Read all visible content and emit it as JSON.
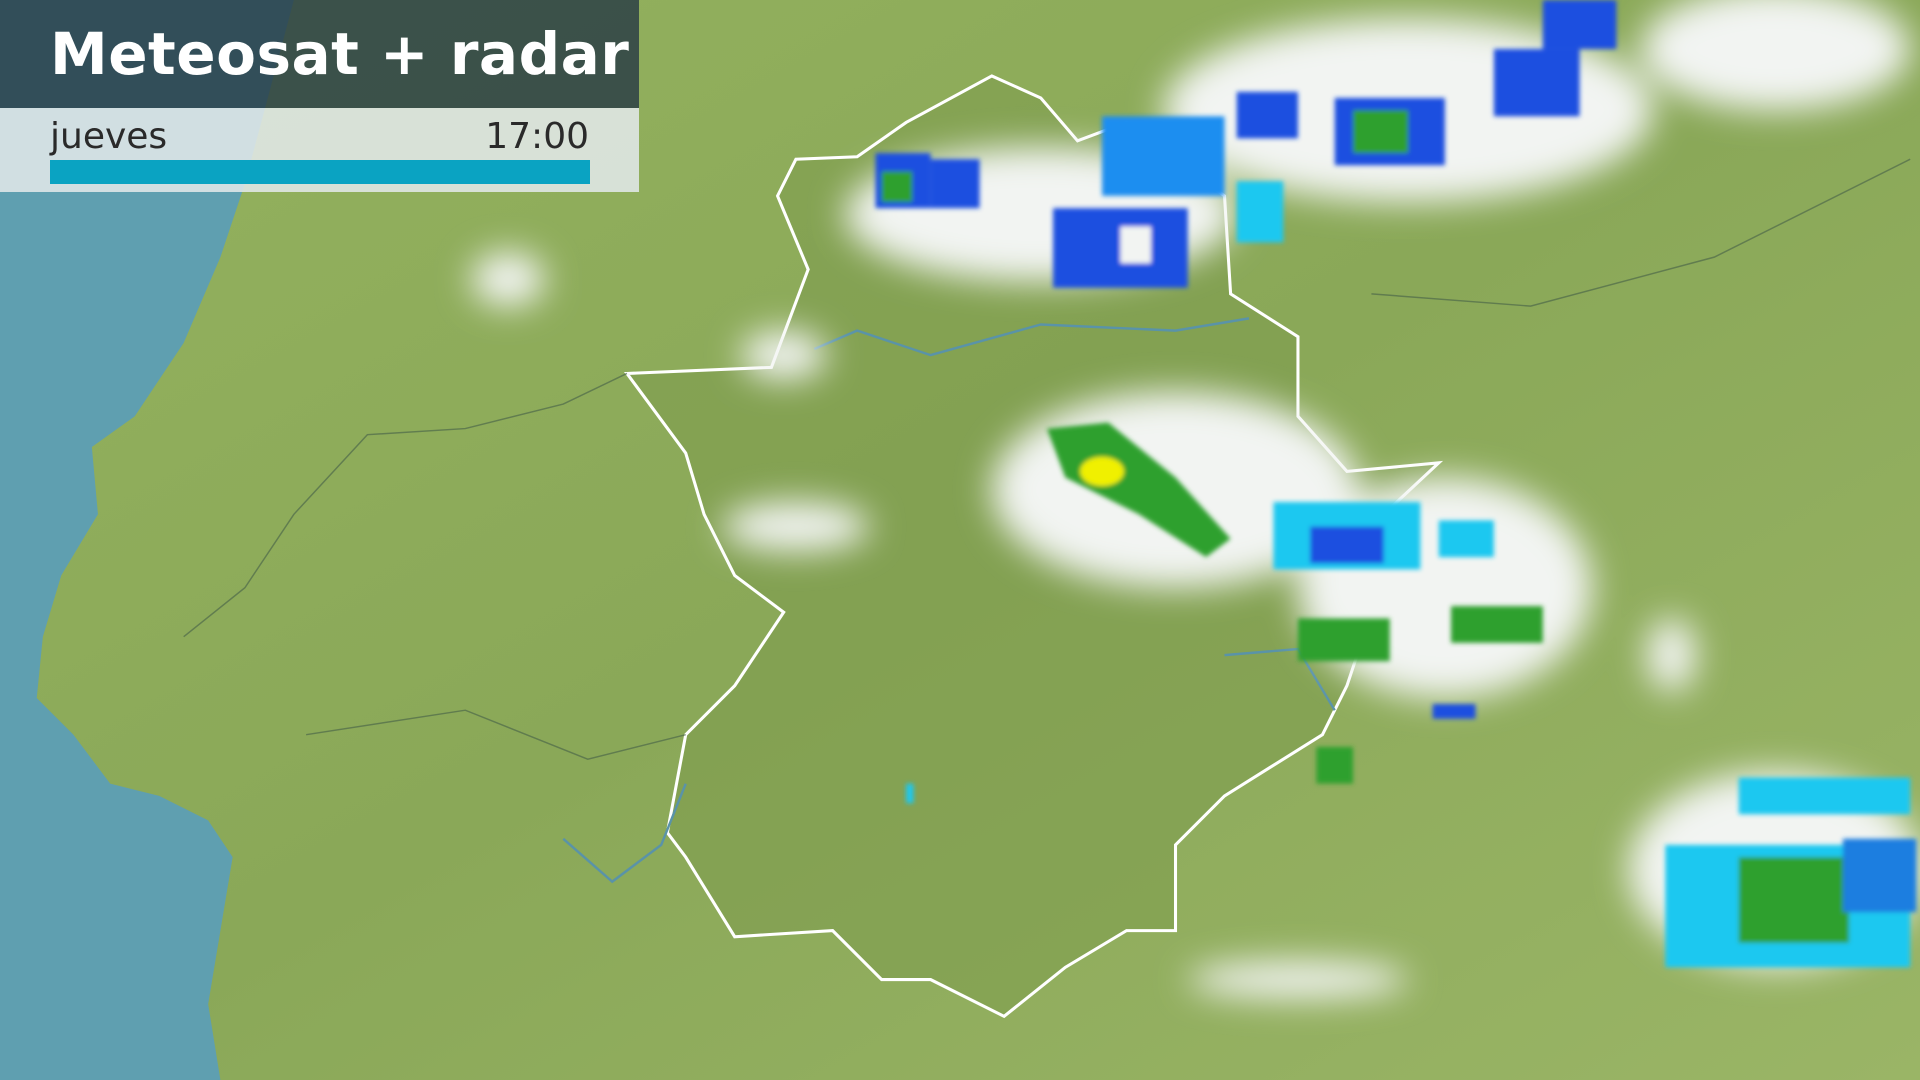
{
  "header": {
    "title": "Meteosat + radar",
    "day": "jueves",
    "time": "17:00",
    "progress": 1.0
  },
  "colors": {
    "sea": "#5f9fb0",
    "land": "#8fae5c",
    "cloud": "#f2f4f2",
    "radar_light": "#1ec8f0",
    "radar_mid": "#1a4fe0",
    "radar_heavy": "#2ea02e",
    "radar_peak": "#f0f000",
    "progress_bar": "#0aa3c2"
  }
}
